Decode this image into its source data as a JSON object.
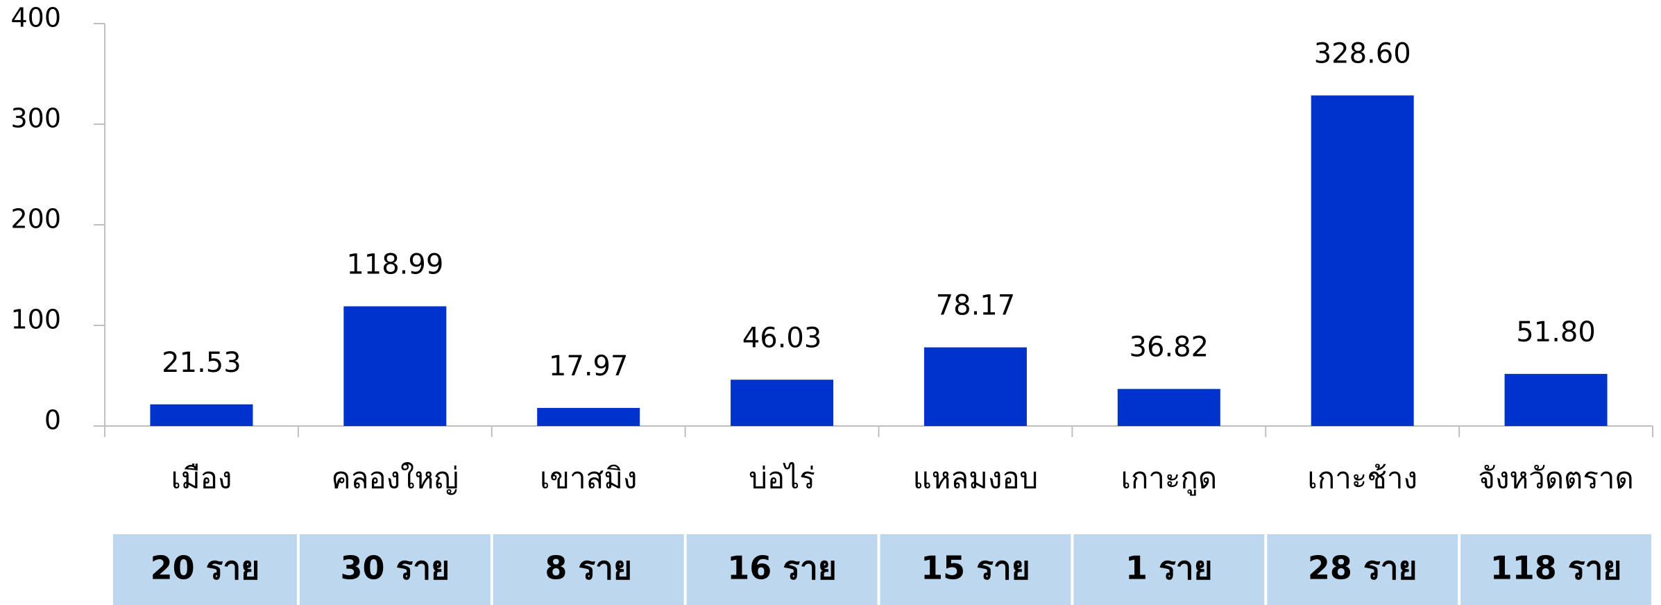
{
  "chart_data": {
    "type": "bar",
    "categories": [
      "เมือง",
      "คลองใหญ่",
      "เขาสมิง",
      "บ่อไร่",
      "แหลมงอบ",
      "เกาะกูด",
      "เกาะช้าง",
      "จังหวัดตราด"
    ],
    "values": [
      21.53,
      118.99,
      17.97,
      46.03,
      78.17,
      36.82,
      328.6,
      51.8
    ],
    "value_labels": [
      "21.53",
      "118.99",
      "17.97",
      "46.03",
      "78.17",
      "36.82",
      "328.60",
      "51.80"
    ],
    "color": "#0033cc",
    "ylim": [
      0,
      400
    ],
    "yticks": [
      0,
      100,
      200,
      300,
      400
    ],
    "grid": false,
    "table_row": [
      "20 ราย",
      "30 ราย",
      "8 ราย",
      "16 ราย",
      "15 ราย",
      "1 ราย",
      "28 ราย",
      "118 ราย"
    ]
  }
}
